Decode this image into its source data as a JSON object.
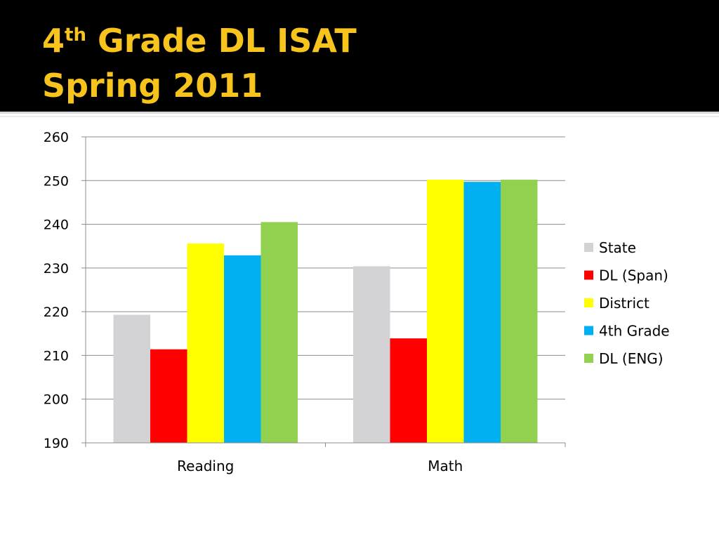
{
  "slide": {
    "title_prefix": "4",
    "title_superscript": "th",
    "title_rest": " Grade DL ISAT",
    "title_line2": "Spring 2011"
  },
  "colors": {
    "header_background": "#000000",
    "title": "#f7c41d"
  },
  "chart_data": {
    "type": "bar",
    "title": "",
    "xlabel": "",
    "ylabel": "",
    "categories": [
      "Reading",
      "Math"
    ],
    "ylim": [
      190,
      260
    ],
    "yticks": [
      190,
      200,
      210,
      220,
      230,
      240,
      250,
      260
    ],
    "grid": true,
    "legend_position": "right",
    "series": [
      {
        "name": "State",
        "color": "#d3d3d5",
        "values": [
          219.3,
          230.4
        ]
      },
      {
        "name": "DL (Span)",
        "color": "#ff0000",
        "values": [
          211.4,
          213.9
        ]
      },
      {
        "name": "District",
        "color": "#ffff00",
        "values": [
          235.6,
          250.2
        ]
      },
      {
        "name": "4th Grade",
        "color": "#00b0f0",
        "values": [
          232.9,
          249.7
        ]
      },
      {
        "name": "DL (ENG)",
        "color": "#92d050",
        "values": [
          240.5,
          250.2
        ]
      }
    ]
  }
}
